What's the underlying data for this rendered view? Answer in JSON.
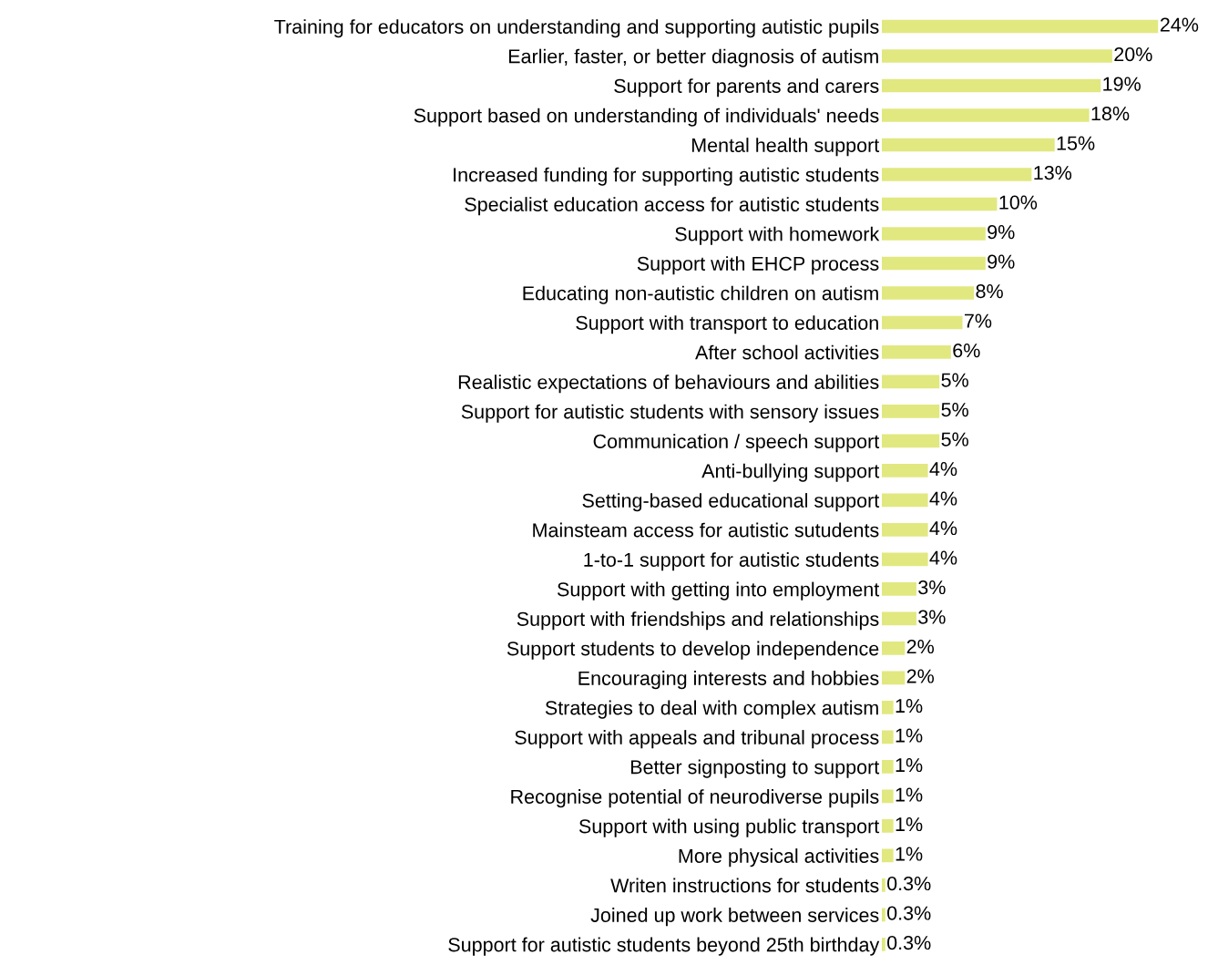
{
  "chart_data": {
    "type": "bar",
    "orientation": "horizontal",
    "color": "#e1e87f",
    "grid": false,
    "legend": false,
    "tick_labels": "y",
    "categories": [
      "Training for educators on understanding and supporting autistic pupils",
      "Earlier, faster, or better diagnosis of autism",
      "Support for parents and carers",
      "Support based on understanding of individuals' needs",
      "Mental health support",
      "Increased funding for supporting autistic students",
      "Specialist education access for autistic students",
      "Support with homework",
      "Support with EHCP process",
      "Educating non-autistic children on autism",
      "Support with transport to education",
      "After school activities",
      "Realistic expectations of behaviours and abilities",
      "Support for autistic students with sensory issues",
      "Communication / speech support",
      "Anti-bullying support",
      "Setting-based educational support",
      "Mainsteam access for autistic sutudents",
      "1-to-1 support for autistic students",
      "Support with getting into employment",
      "Support with friendships and relationships",
      "Support students to develop independence",
      "Encouraging interests and hobbies",
      "Strategies to deal with complex autism",
      "Support with appeals and tribunal process",
      "Better signposting to support",
      "Recognise potential of neurodiverse pupils",
      "Support with using public transport",
      "More physical activities",
      "Writen instructions for students",
      "Joined up work between services",
      "Support for autistic students beyond 25th birthday"
    ],
    "values": [
      24,
      20,
      19,
      18,
      15,
      13,
      10,
      9,
      9,
      8,
      7,
      6,
      5,
      5,
      5,
      4,
      4,
      4,
      4,
      3,
      3,
      2,
      2,
      1,
      1,
      1,
      1,
      1,
      1,
      0.3,
      0.3,
      0.3
    ],
    "value_labels": [
      "24%",
      "20%",
      "19%",
      "18%",
      "15%",
      "13%",
      "10%",
      "9%",
      "9%",
      "8%",
      "7%",
      "6%",
      "5%",
      "5%",
      "5%",
      "4%",
      "4%",
      "4%",
      "4%",
      "3%",
      "3%",
      "2%",
      "2%",
      "1%",
      "1%",
      "1%",
      "1%",
      "1%",
      "1%",
      "0.3%",
      "0.3%",
      "0.3%"
    ]
  }
}
